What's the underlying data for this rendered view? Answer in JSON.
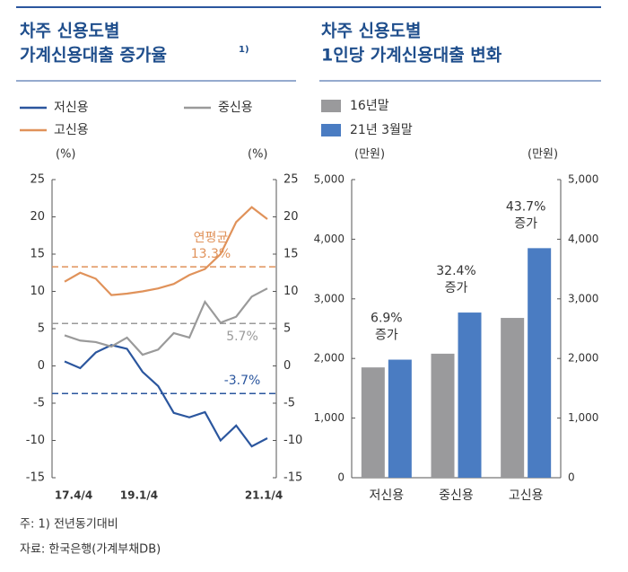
{
  "footnotes": [
    "주: 1) 전년동기대비",
    "자료: 한국은행(가계부채DB)"
  ],
  "chart_data": [
    {
      "type": "line",
      "title_lines": [
        "차주 신용도별",
        "가계신용대출 증가율"
      ],
      "title_note": "1)",
      "y_unit": "(%)",
      "categories": [
        "17.4/4",
        null,
        null,
        null,
        null,
        "19.1/4",
        null,
        null,
        null,
        null,
        null,
        null,
        null,
        "21.1/4"
      ],
      "series": [
        {
          "name": "저신용",
          "color": "#2b569e",
          "values": [
            0.6,
            -0.3,
            1.8,
            2.8,
            2.3,
            -0.8,
            -2.7,
            -6.3,
            -6.9,
            -6.2,
            -10,
            -8,
            -10.8,
            -9.7
          ]
        },
        {
          "name": "중신용",
          "color": "#9a9a9a",
          "values": [
            4.1,
            3.4,
            3.2,
            2.6,
            3.8,
            1.5,
            2.2,
            4.4,
            3.8,
            8.6,
            5.8,
            6.6,
            9.3,
            10.4
          ]
        },
        {
          "name": "고신용",
          "color": "#e0925a",
          "values": [
            11.3,
            12.5,
            11.7,
            9.5,
            9.7,
            10,
            10.4,
            11,
            12.2,
            13,
            15,
            19.3,
            21.3,
            19.7
          ]
        }
      ],
      "ylim": [
        -15,
        25
      ],
      "yticks": [
        25,
        20,
        15,
        10,
        5,
        0,
        -5,
        -10,
        -15
      ],
      "reference_lines": [
        {
          "value": 13.3,
          "label": "13.3%",
          "note": "연평균",
          "color": "#e0925a"
        },
        {
          "value": 5.7,
          "label": "5.7%",
          "color": "#9a9a9a"
        },
        {
          "value": -3.7,
          "label": "-3.7%",
          "color": "#2b569e"
        }
      ]
    },
    {
      "type": "bar",
      "title_lines": [
        "차주 신용도별",
        "1인당 가계신용대출 변화"
      ],
      "y_unit": "(만원)",
      "categories": [
        "저신용",
        "중신용",
        "고신용"
      ],
      "series": [
        {
          "name": "16년말",
          "color": "#9a9a9c",
          "values": [
            1850,
            2080,
            2680
          ]
        },
        {
          "name": "21년 3월말",
          "color": "#4a7cc2",
          "values": [
            1980,
            2770,
            3850
          ]
        }
      ],
      "ylim": [
        0,
        5000
      ],
      "yticks": [
        {
          "value": 5000,
          "label": "5,000"
        },
        {
          "value": 4000,
          "label": "4,000"
        },
        {
          "value": 3000,
          "label": "3,000"
        },
        {
          "value": 2000,
          "label": "2,000"
        },
        {
          "value": 1000,
          "label": "1,000"
        },
        0
      ],
      "growth": [
        6.9,
        32.4,
        43.7
      ],
      "growth_labels": [
        "6.9%",
        "32.4%",
        "43.7%"
      ],
      "growth_word": "증가"
    }
  ]
}
